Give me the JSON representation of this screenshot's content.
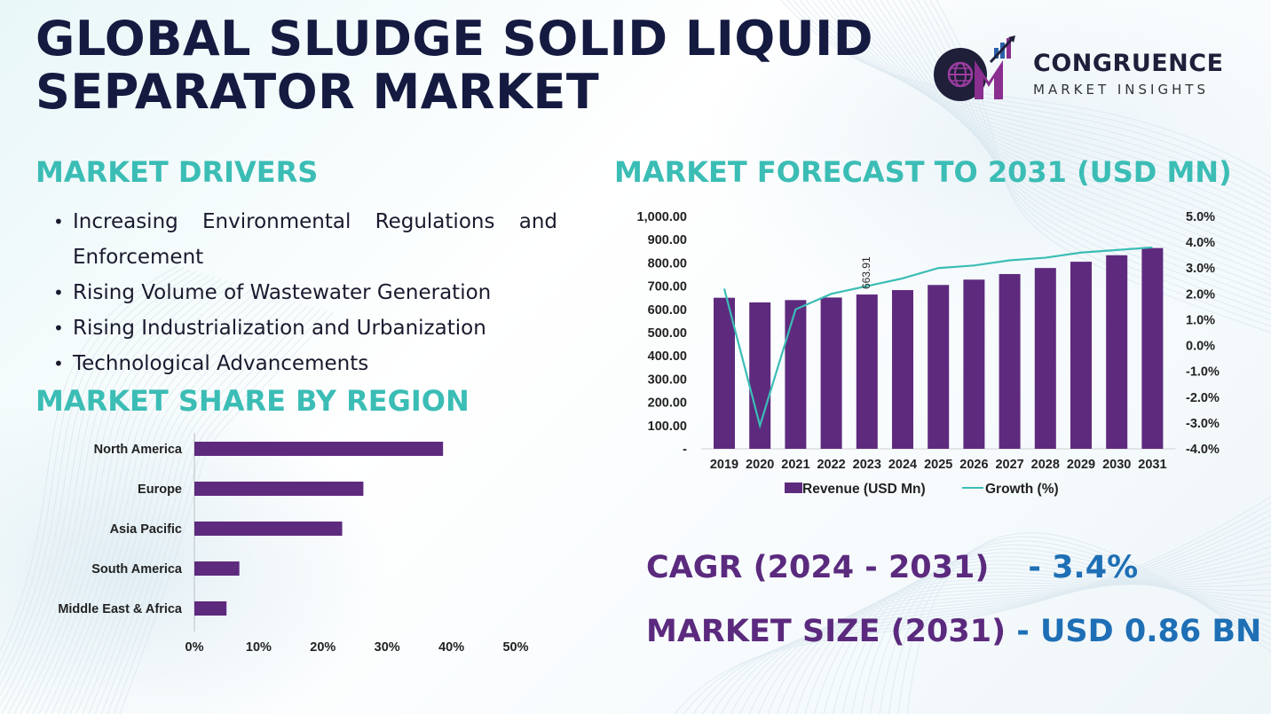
{
  "title": "GLOBAL SLUDGE SOLID LIQUID SEPARATOR MARKET",
  "logo": {
    "name": "CONGRUENCE",
    "tagline": "MARKET INSIGHTS",
    "icon": "cmi-globe-logo-icon",
    "colors": {
      "purple": "#7b2a80",
      "dark": "#1f1f3a",
      "blue": "#2b5fa8"
    }
  },
  "drivers": {
    "heading": "MARKET DRIVERS",
    "items": [
      "Increasing Environmental Regulations and Enforcement",
      "Rising Volume of Wastewater Generation",
      "Rising Industrialization and Urbanization",
      "Technological Advancements"
    ]
  },
  "region": {
    "heading": "MARKET SHARE BY REGION"
  },
  "forecast": {
    "heading": "MARKET FORECAST TO 2031 (USD MN)"
  },
  "stats": {
    "cagr_label": "CAGR (2024 - 2031)",
    "cagr_value": "- 3.4%",
    "size_label": "MARKET SIZE (2031)",
    "size_value": "- USD 0.86 BN"
  },
  "colors": {
    "heading_teal": "#3bbdb5",
    "bar_purple": "#5e2a7e",
    "growth_line": "#3bbdb5",
    "stat_purple": "#5b2a7e",
    "stat_blue": "#1e6fb5",
    "title_navy": "#141a40"
  },
  "chart_data": [
    {
      "type": "bar",
      "orientation": "horizontal",
      "categories": [
        "North America",
        "Europe",
        "Asia Pacific",
        "South America",
        "Middle East & Africa"
      ],
      "values": [
        38.7,
        26.3,
        23.0,
        7.0,
        5.0
      ],
      "xlim": [
        0,
        50
      ],
      "x_ticks": [
        "0%",
        "10%",
        "20%",
        "30%",
        "40%",
        "50%"
      ],
      "unit": "%",
      "grid": false
    },
    {
      "type": "bar",
      "categories": [
        "2019",
        "2020",
        "2021",
        "2022",
        "2023",
        "2024",
        "2025",
        "2026",
        "2027",
        "2028",
        "2029",
        "2030",
        "2031"
      ],
      "series": [
        {
          "name": "Revenue (USD Mn)",
          "type": "bar",
          "axis": "left",
          "values": [
            650,
            630,
            640,
            651,
            663.91,
            683,
            705,
            728,
            752,
            778,
            805,
            833,
            864
          ]
        },
        {
          "name": "Growth (%)",
          "type": "line",
          "axis": "right",
          "values": [
            2.2,
            -3.1,
            1.4,
            2.0,
            2.3,
            2.6,
            3.0,
            3.1,
            3.3,
            3.4,
            3.6,
            3.7,
            3.8
          ]
        }
      ],
      "y_left": {
        "lim": [
          0,
          1000
        ],
        "ticks": [
          "-",
          "100.00",
          "200.00",
          "300.00",
          "400.00",
          "500.00",
          "600.00",
          "700.00",
          "800.00",
          "900.00",
          "1,000.00"
        ]
      },
      "y_right": {
        "lim": [
          -4,
          5
        ],
        "ticks": [
          "-4.0%",
          "-3.0%",
          "-2.0%",
          "-1.0%",
          "0.0%",
          "1.0%",
          "2.0%",
          "3.0%",
          "4.0%",
          "5.0%"
        ]
      },
      "annotations": [
        {
          "category": "2023",
          "text": "663.91",
          "rotation": "vertical"
        }
      ],
      "legend": "bottom",
      "grid": false
    }
  ]
}
